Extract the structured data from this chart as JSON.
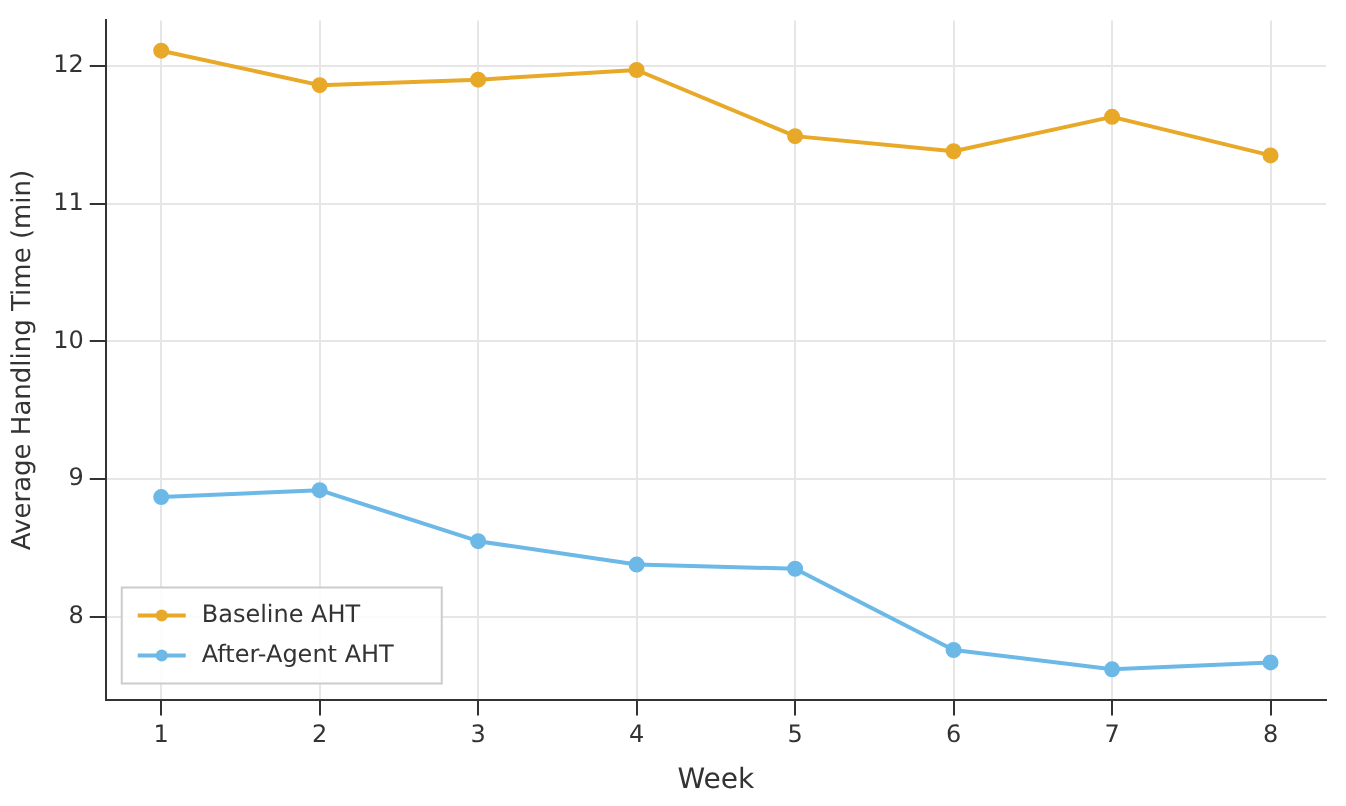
{
  "chart_data": {
    "type": "line",
    "xlabel": "Week",
    "ylabel": "Average Handling Time (min)",
    "x": [
      1,
      2,
      3,
      4,
      5,
      6,
      7,
      8
    ],
    "series": [
      {
        "name": "Baseline AHT",
        "color": "#e8a828",
        "values": [
          12.11,
          11.86,
          11.9,
          11.97,
          11.49,
          11.38,
          11.63,
          11.35
        ]
      },
      {
        "name": "After-Agent AHT",
        "color": "#6cb8e6",
        "values": [
          8.87,
          8.92,
          8.55,
          8.38,
          8.35,
          7.76,
          7.62,
          7.67
        ]
      }
    ],
    "xlim": [
      0.65,
      8.35
    ],
    "xticks": [
      1,
      2,
      3,
      4,
      5,
      6,
      7,
      8
    ],
    "ylim": [
      7.4,
      12.33
    ],
    "yticks": [
      8,
      9,
      10,
      11,
      12
    ],
    "grid": true,
    "legend": "bottom left",
    "marker": "circle",
    "line_style": "solid"
  }
}
